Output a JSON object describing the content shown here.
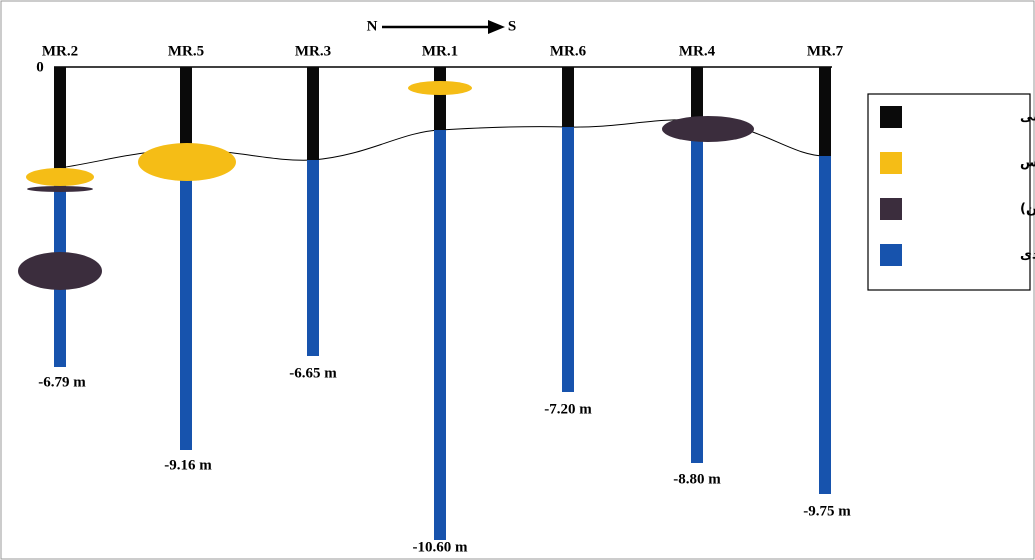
{
  "header": {
    "north": "N",
    "south": "S",
    "surface": "0"
  },
  "wells": [
    {
      "name": "MR.2",
      "depth": "-6.79 m"
    },
    {
      "name": "MR.5",
      "depth": "-9.16 m"
    },
    {
      "name": "MR.3",
      "depth": "-6.65 m"
    },
    {
      "name": "MR.1",
      "depth": "-10.60 m"
    },
    {
      "name": "MR.6",
      "depth": "-7.20 m"
    },
    {
      "name": "MR.4",
      "depth": "-8.80 m"
    },
    {
      "name": "MR.7",
      "depth": "-9.75 m"
    }
  ],
  "legend": [
    "دشت سیلابی",
    "کروس",
    "تالاب (آب شور و شیرین)",
    "پهنه جزر و مدی"
  ]
}
